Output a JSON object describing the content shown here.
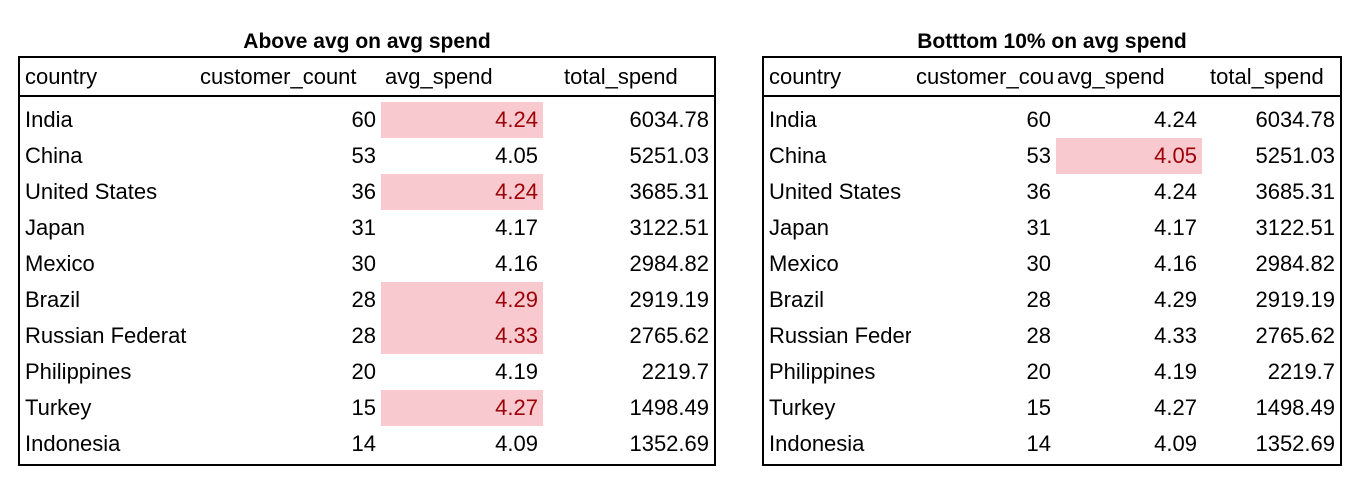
{
  "left_table": {
    "title": "Above avg on avg spend",
    "headers": [
      "country",
      "customer_count",
      "avg_spend",
      "total_spend"
    ],
    "rows": [
      {
        "country": "India",
        "customer_count": "60",
        "avg_spend": "4.24",
        "total_spend": "6034.78",
        "highlight": true
      },
      {
        "country": "China",
        "customer_count": "53",
        "avg_spend": "4.05",
        "total_spend": "5251.03",
        "highlight": false
      },
      {
        "country": "United States",
        "customer_count": "36",
        "avg_spend": "4.24",
        "total_spend": "3685.31",
        "highlight": true
      },
      {
        "country": "Japan",
        "customer_count": "31",
        "avg_spend": "4.17",
        "total_spend": "3122.51",
        "highlight": false
      },
      {
        "country": "Mexico",
        "customer_count": "30",
        "avg_spend": "4.16",
        "total_spend": "2984.82",
        "highlight": false
      },
      {
        "country": "Brazil",
        "customer_count": "28",
        "avg_spend": "4.29",
        "total_spend": "2919.19",
        "highlight": true
      },
      {
        "country": "Russian Federat",
        "customer_count": "28",
        "avg_spend": "4.33",
        "total_spend": "2765.62",
        "highlight": true
      },
      {
        "country": "Philippines",
        "customer_count": "20",
        "avg_spend": "4.19",
        "total_spend": "2219.7",
        "highlight": false
      },
      {
        "country": "Turkey",
        "customer_count": "15",
        "avg_spend": "4.27",
        "total_spend": "1498.49",
        "highlight": true
      },
      {
        "country": "Indonesia",
        "customer_count": "14",
        "avg_spend": "4.09",
        "total_spend": "1352.69",
        "highlight": false
      }
    ]
  },
  "right_table": {
    "title": "Botttom 10% on avg spend",
    "headers": [
      "country",
      "customer_cou",
      "avg_spend",
      "total_spend"
    ],
    "rows": [
      {
        "country": "India",
        "customer_count": "60",
        "avg_spend": "4.24",
        "total_spend": "6034.78",
        "highlight": false
      },
      {
        "country": "China",
        "customer_count": "53",
        "avg_spend": "4.05",
        "total_spend": "5251.03",
        "highlight": true
      },
      {
        "country": "United States",
        "customer_count": "36",
        "avg_spend": "4.24",
        "total_spend": "3685.31",
        "highlight": false
      },
      {
        "country": "Japan",
        "customer_count": "31",
        "avg_spend": "4.17",
        "total_spend": "3122.51",
        "highlight": false
      },
      {
        "country": "Mexico",
        "customer_count": "30",
        "avg_spend": "4.16",
        "total_spend": "2984.82",
        "highlight": false
      },
      {
        "country": "Brazil",
        "customer_count": "28",
        "avg_spend": "4.29",
        "total_spend": "2919.19",
        "highlight": false
      },
      {
        "country": "Russian Feder",
        "customer_count": "28",
        "avg_spend": "4.33",
        "total_spend": "2765.62",
        "highlight": false
      },
      {
        "country": "Philippines",
        "customer_count": "20",
        "avg_spend": "4.19",
        "total_spend": "2219.7",
        "highlight": false
      },
      {
        "country": "Turkey",
        "customer_count": "15",
        "avg_spend": "4.27",
        "total_spend": "1498.49",
        "highlight": false
      },
      {
        "country": "Indonesia",
        "customer_count": "14",
        "avg_spend": "4.09",
        "total_spend": "1352.69",
        "highlight": false
      }
    ]
  },
  "colors": {
    "highlight_fill": "#f8c9ce",
    "highlight_text": "#9c0006"
  }
}
